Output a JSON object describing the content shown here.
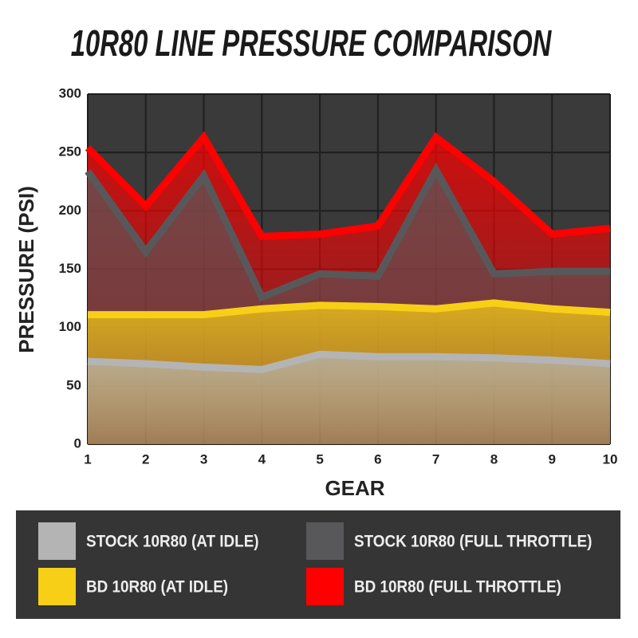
{
  "chart_data": {
    "type": "area",
    "title": "10R80 LINE PRESSURE COMPARISON",
    "x_label": "GEAR",
    "y_label": "PRESSURE (PSI)",
    "x": [
      1,
      2,
      3,
      4,
      5,
      6,
      7,
      8,
      9,
      10
    ],
    "xlim": [
      1,
      10
    ],
    "xticks": [
      1,
      2,
      3,
      4,
      5,
      6,
      7,
      8,
      9,
      10
    ],
    "ylim": [
      0,
      300
    ],
    "yticks": [
      0,
      50,
      100,
      150,
      200,
      250,
      300
    ],
    "grid": true,
    "series": [
      {
        "name": "STOCK 10R80 (AT IDLE)",
        "color": "#b4b4b4",
        "values": [
          71,
          69,
          66,
          64,
          77,
          75,
          75,
          74,
          72,
          69
        ]
      },
      {
        "name": "STOCK 10R80 (FULL THROTTLE)",
        "color": "#58585a",
        "values": [
          234,
          165,
          230,
          126,
          146,
          144,
          235,
          146,
          148,
          148
        ]
      },
      {
        "name": "BD 10R80 (AT IDLE)",
        "color": "#f7cf16",
        "values": [
          111,
          111,
          111,
          116,
          119,
          118,
          116,
          121,
          116,
          113
        ]
      },
      {
        "name": "BD 10R80 (FULL THROTTLE)",
        "color": "#fe0000",
        "values": [
          254,
          204,
          263,
          178,
          180,
          187,
          263,
          225,
          180,
          185
        ]
      }
    ]
  }
}
